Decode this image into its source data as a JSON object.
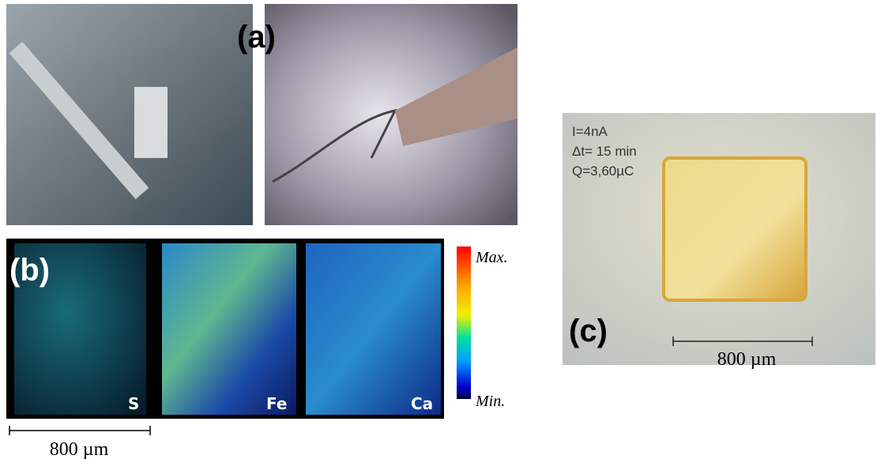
{
  "panel_a": {
    "label": "(a)"
  },
  "panel_b": {
    "label": "(b)",
    "maps": [
      "S",
      "Fe",
      "Ca"
    ],
    "colorbar": {
      "max": "Max.",
      "min": "Min."
    },
    "scale": "800 µm"
  },
  "panel_c": {
    "label": "(c)",
    "info": [
      "I=4nA",
      "Δt= 15  min",
      "Q=3,60µC"
    ],
    "scale": "800 µm"
  }
}
